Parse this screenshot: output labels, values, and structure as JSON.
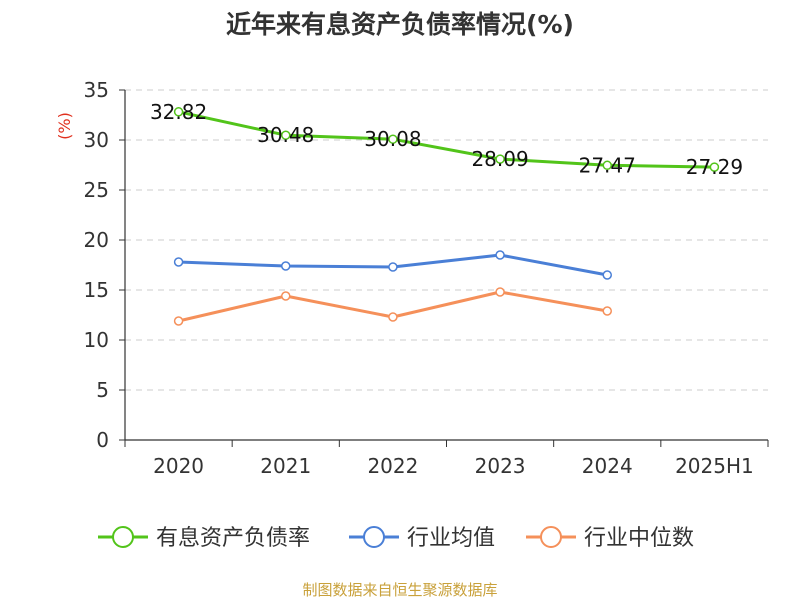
{
  "chart_data": {
    "type": "line",
    "title": "近年来有息资产负债率情况(%)",
    "ylabel": "(%)",
    "xlabel": "",
    "categories": [
      "2020",
      "2021",
      "2022",
      "2023",
      "2024",
      "2025H1"
    ],
    "ylim": [
      0,
      35
    ],
    "yticks": [
      0,
      5,
      10,
      15,
      20,
      25,
      30,
      35
    ],
    "grid": true,
    "legend_position": "bottom",
    "series": [
      {
        "name": "有息资产负债率",
        "color": "#52c41a",
        "values": [
          32.82,
          30.48,
          30.08,
          28.09,
          27.47,
          27.29
        ],
        "labels": [
          "32.82",
          "30.48",
          "30.08",
          "28.09",
          "27.47",
          "27.29"
        ],
        "show_labels": true
      },
      {
        "name": "行业均值",
        "color": "#4a7fd6",
        "values": [
          17.8,
          17.4,
          17.3,
          18.5,
          16.5,
          null
        ],
        "show_labels": false
      },
      {
        "name": "行业中位数",
        "color": "#f5905a",
        "values": [
          11.9,
          14.4,
          12.3,
          14.8,
          12.9,
          null
        ],
        "show_labels": false
      }
    ],
    "source": "制图数据来自恒生聚源数据库"
  }
}
